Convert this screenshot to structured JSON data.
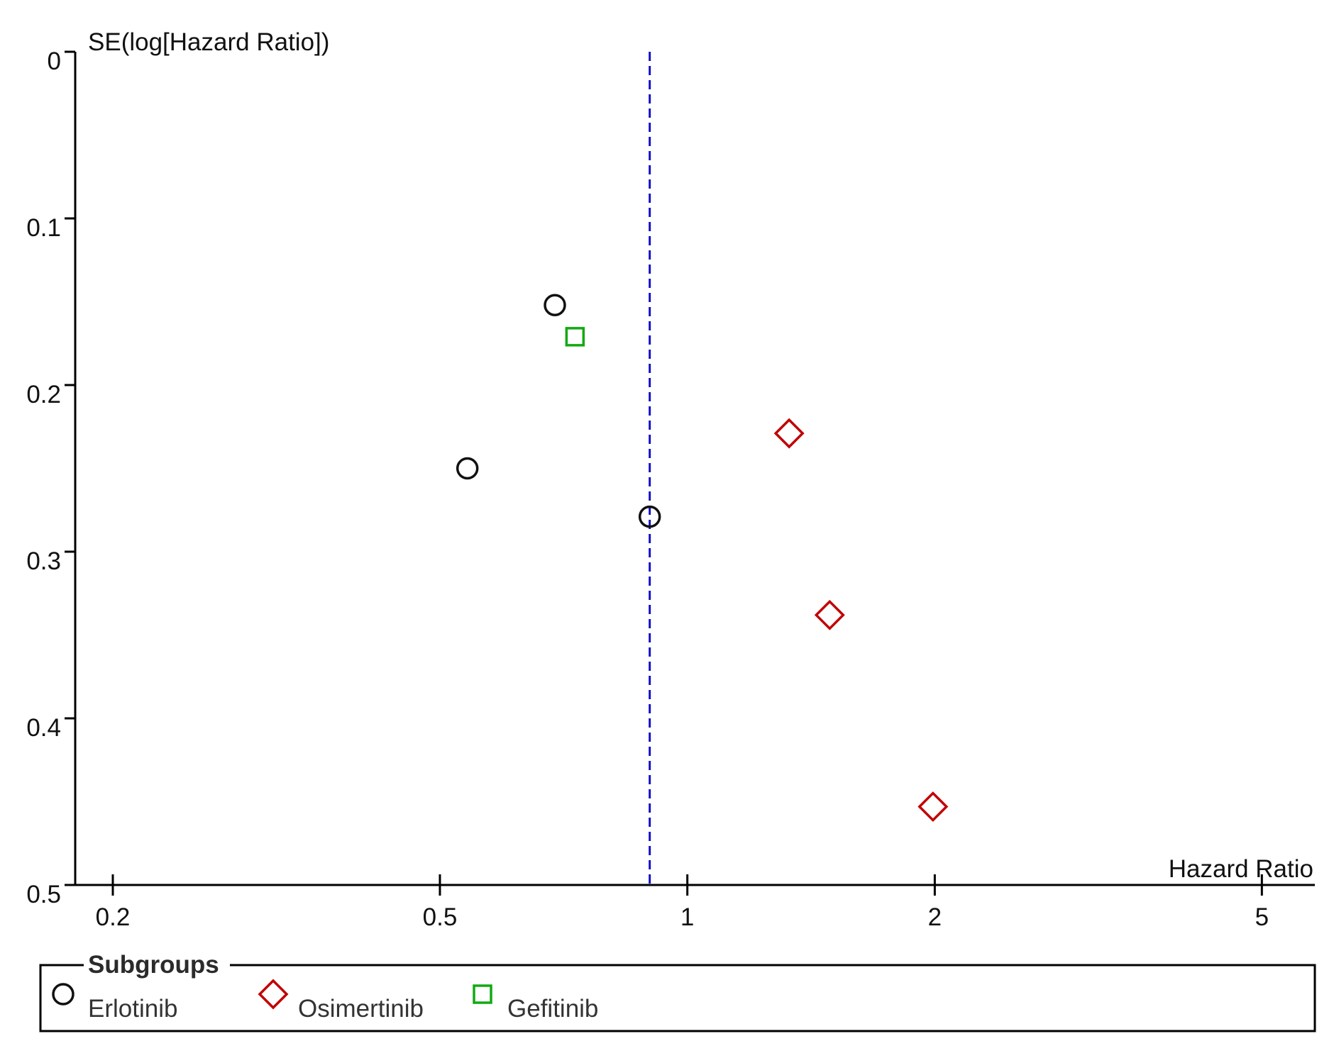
{
  "chart_data": {
    "type": "scatter",
    "title": "",
    "xlabel": "Hazard Ratio",
    "ylabel": "SE(log[Hazard Ratio])",
    "x_scale": "log",
    "y_inverted": true,
    "xlim": [
      0.18,
      5.8
    ],
    "ylim": [
      0,
      0.5
    ],
    "x_ticks": [
      {
        "value": 0.2,
        "label": "0.2"
      },
      {
        "value": 0.5,
        "label": "0.5"
      },
      {
        "value": 1,
        "label": "1"
      },
      {
        "value": 2,
        "label": "2"
      },
      {
        "value": 5,
        "label": "5"
      }
    ],
    "y_ticks": [
      {
        "value": 0,
        "label": "0"
      },
      {
        "value": 0.1,
        "label": "0.1"
      },
      {
        "value": 0.2,
        "label": "0.2"
      },
      {
        "value": 0.3,
        "label": "0.3"
      },
      {
        "value": 0.4,
        "label": "0.4"
      },
      {
        "value": 0.5,
        "label": "0.5"
      }
    ],
    "reference_line": {
      "x": 0.9,
      "style": "dashed",
      "color": "#1010c8"
    },
    "series": [
      {
        "name": "Erlotinib",
        "marker": "circle",
        "color": "#111111",
        "points": [
          {
            "x": 0.69,
            "y": 0.152
          },
          {
            "x": 0.54,
            "y": 0.25
          },
          {
            "x": 0.9,
            "y": 0.279
          }
        ]
      },
      {
        "name": "Osimertinib",
        "marker": "diamond",
        "color": "#c00000",
        "points": [
          {
            "x": 1.33,
            "y": 0.229
          },
          {
            "x": 1.49,
            "y": 0.338
          },
          {
            "x": 1.99,
            "y": 0.453
          }
        ]
      },
      {
        "name": "Gefitinib",
        "marker": "square",
        "color": "#11aa11",
        "points": [
          {
            "x": 0.73,
            "y": 0.171
          }
        ]
      }
    ],
    "legend": {
      "title": "Subgroups",
      "placement": "bottom",
      "items": [
        "Erlotinib",
        "Osimertinib",
        "Gefitinib"
      ]
    }
  }
}
